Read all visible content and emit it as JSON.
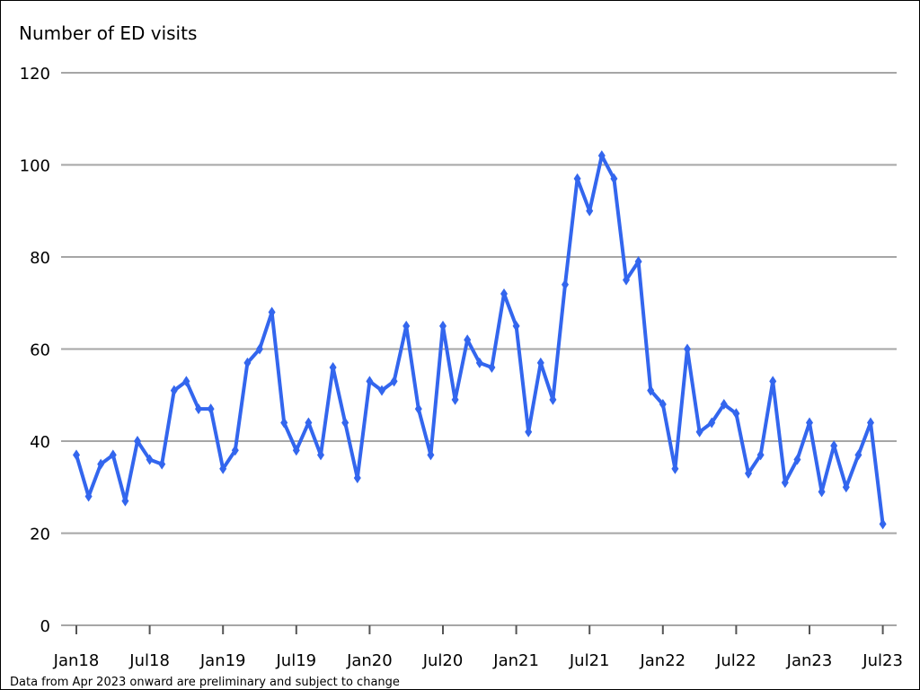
{
  "chart_data": {
    "type": "line",
    "title": "",
    "ylabel": "Number of ED visits",
    "xlabel": "",
    "ylim": [
      0,
      120
    ],
    "yticks": [
      0,
      20,
      40,
      60,
      80,
      100,
      120
    ],
    "grid": true,
    "x_tick_labels": [
      "Jan18",
      "Jul18",
      "Jan19",
      "Jul19",
      "Jan20",
      "Jul20",
      "Jan21",
      "Jul21",
      "Jan22",
      "Jul22",
      "Jan23",
      "Jul23"
    ],
    "x": [
      "2018-01",
      "2018-02",
      "2018-03",
      "2018-04",
      "2018-05",
      "2018-06",
      "2018-07",
      "2018-08",
      "2018-09",
      "2018-10",
      "2018-11",
      "2018-12",
      "2019-01",
      "2019-02",
      "2019-03",
      "2019-04",
      "2019-05",
      "2019-06",
      "2019-07",
      "2019-08",
      "2019-09",
      "2019-10",
      "2019-11",
      "2019-12",
      "2020-01",
      "2020-02",
      "2020-03",
      "2020-04",
      "2020-05",
      "2020-06",
      "2020-07",
      "2020-08",
      "2020-09",
      "2020-10",
      "2020-11",
      "2020-12",
      "2021-01",
      "2021-02",
      "2021-03",
      "2021-04",
      "2021-05",
      "2021-06",
      "2021-07",
      "2021-08",
      "2021-09",
      "2021-10",
      "2021-11",
      "2021-12",
      "2022-01",
      "2022-02",
      "2022-03",
      "2022-04",
      "2022-05",
      "2022-06",
      "2022-07",
      "2022-08",
      "2022-09",
      "2022-10",
      "2022-11",
      "2022-12",
      "2023-01",
      "2023-02",
      "2023-03",
      "2023-04",
      "2023-05",
      "2023-06",
      "2023-07"
    ],
    "series": [
      {
        "name": "",
        "color": "#3366ee",
        "values": [
          37,
          28,
          35,
          37,
          27,
          40,
          36,
          35,
          51,
          53,
          47,
          47,
          34,
          38,
          57,
          60,
          68,
          44,
          38,
          44,
          37,
          56,
          44,
          32,
          53,
          51,
          53,
          65,
          47,
          37,
          65,
          49,
          62,
          57,
          56,
          72,
          65,
          42,
          57,
          49,
          74,
          97,
          90,
          102,
          97,
          75,
          79,
          51,
          48,
          34,
          60,
          42,
          44,
          48,
          46,
          33,
          37,
          53,
          31,
          36,
          44,
          29,
          39,
          30,
          37,
          44,
          22
        ]
      }
    ]
  },
  "footnote": "Data from Apr 2023 onward are preliminary and subject to change"
}
